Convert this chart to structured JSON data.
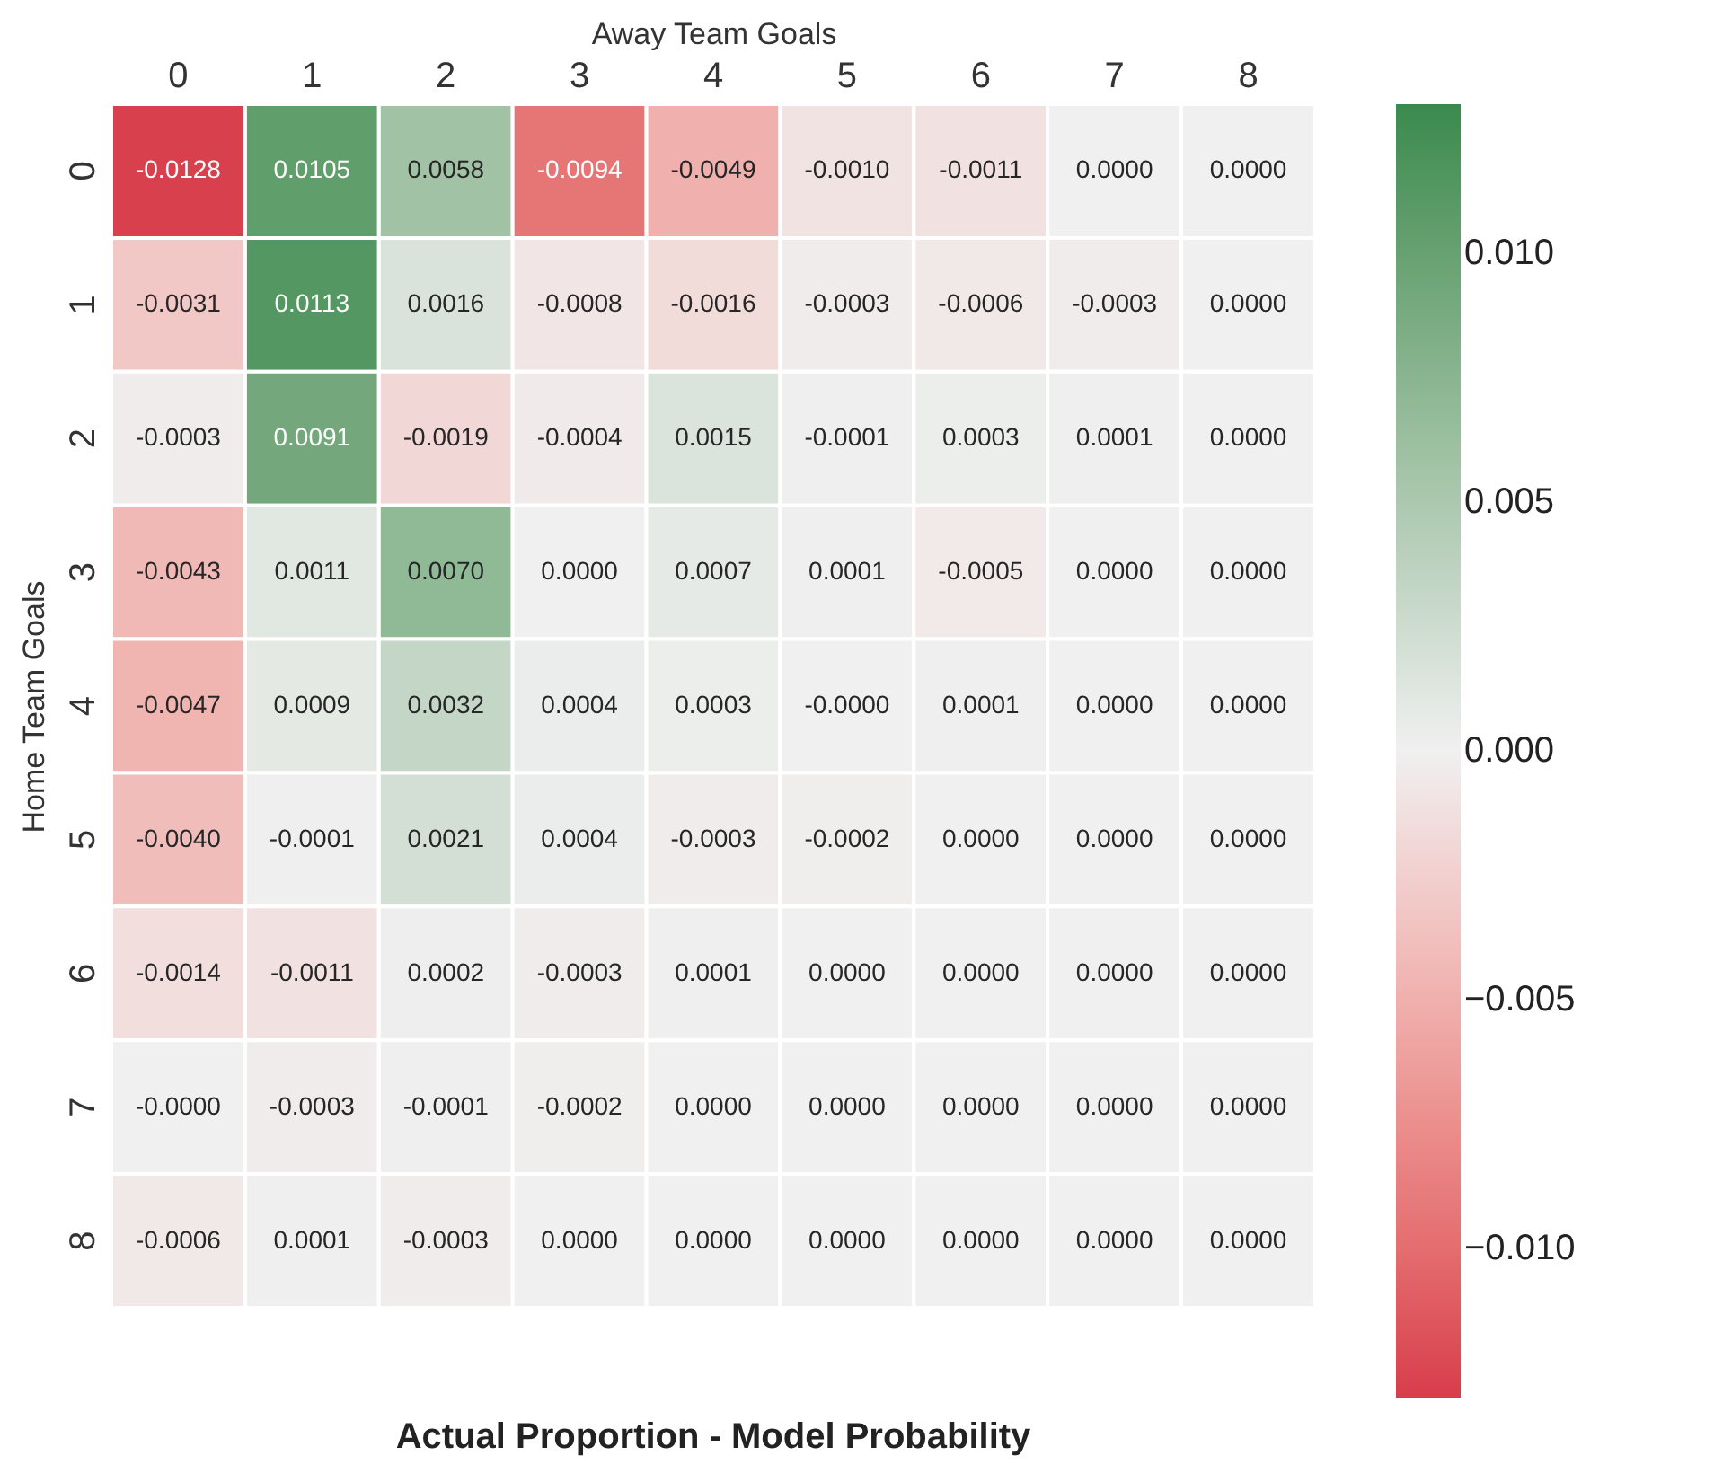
{
  "chart_data": {
    "type": "heatmap",
    "title": "Actual Proportion - Model Probability",
    "xlabel": "Away Team Goals",
    "ylabel": "Home Team Goals",
    "categories": [
      "0",
      "1",
      "2",
      "3",
      "4",
      "5",
      "6",
      "7",
      "8"
    ],
    "y_categories": [
      "0",
      "1",
      "2",
      "3",
      "4",
      "5",
      "6",
      "7",
      "8"
    ],
    "cells": [
      [
        -0.0128,
        0.0105,
        0.0058,
        -0.0094,
        -0.0049,
        -0.001,
        -0.0011,
        0,
        0
      ],
      [
        -0.0031,
        0.0113,
        0.0016,
        -0.0008,
        -0.0016,
        -0.0003,
        -0.0006,
        -0.0003,
        0
      ],
      [
        -0.0003,
        0.0091,
        -0.0019,
        -0.0004,
        0.0015,
        -0.0001,
        0.0003,
        0.0001,
        0
      ],
      [
        -0.0043,
        0.0011,
        0.007,
        0,
        0.0007,
        0.0001,
        -0.0005,
        0,
        0
      ],
      [
        -0.0047,
        0.0009,
        0.0032,
        0.0004,
        0.0003,
        0,
        0.0001,
        0,
        0
      ],
      [
        -0.004,
        -0.0001,
        0.0021,
        0.0004,
        -0.0003,
        -0.0002,
        0,
        0,
        0
      ],
      [
        -0.0014,
        -0.0011,
        0.0002,
        -0.0003,
        0.0001,
        0,
        0,
        0,
        0
      ],
      [
        0,
        -0.0003,
        -0.0001,
        -0.0002,
        0,
        0,
        0,
        0,
        0
      ],
      [
        -0.0006,
        0.0001,
        -0.0003,
        0,
        0,
        0,
        0,
        0,
        0
      ]
    ],
    "cell_labels": [
      [
        "-0.0128",
        "0.0105",
        "0.0058",
        "-0.0094",
        "-0.0049",
        "-0.0010",
        "-0.0011",
        "0.0000",
        "0.0000"
      ],
      [
        "-0.0031",
        "0.0113",
        "0.0016",
        "-0.0008",
        "-0.0016",
        "-0.0003",
        "-0.0006",
        "-0.0003",
        "0.0000"
      ],
      [
        "-0.0003",
        "0.0091",
        "-0.0019",
        "-0.0004",
        "0.0015",
        "-0.0001",
        "0.0003",
        "0.0001",
        "0.0000"
      ],
      [
        "-0.0043",
        "0.0011",
        "0.0070",
        "0.0000",
        "0.0007",
        "0.0001",
        "-0.0005",
        "0.0000",
        "0.0000"
      ],
      [
        "-0.0047",
        "0.0009",
        "0.0032",
        "0.0004",
        "0.0003",
        "-0.0000",
        "0.0001",
        "0.0000",
        "0.0000"
      ],
      [
        "-0.0040",
        "-0.0001",
        "0.0021",
        "0.0004",
        "-0.0003",
        "-0.0002",
        "0.0000",
        "0.0000",
        "0.0000"
      ],
      [
        "-0.0014",
        "-0.0011",
        "0.0002",
        "-0.0003",
        "0.0001",
        "0.0000",
        "0.0000",
        "0.0000",
        "0.0000"
      ],
      [
        "-0.0000",
        "-0.0003",
        "-0.0001",
        "-0.0002",
        "0.0000",
        "0.0000",
        "0.0000",
        "0.0000",
        "0.0000"
      ],
      [
        "-0.0006",
        "0.0001",
        "-0.0003",
        "0.0000",
        "0.0000",
        "0.0000",
        "0.0000",
        "0.0000",
        "0.0000"
      ]
    ],
    "clim": [
      -0.013,
      0.013
    ],
    "cticks": [
      {
        "value": -0.01,
        "label": "−0.010"
      },
      {
        "value": -0.005,
        "label": "−0.005"
      },
      {
        "value": 0,
        "label": "0.000"
      },
      {
        "value": 0.005,
        "label": "0.005"
      },
      {
        "value": 0.01,
        "label": "0.010"
      }
    ]
  }
}
